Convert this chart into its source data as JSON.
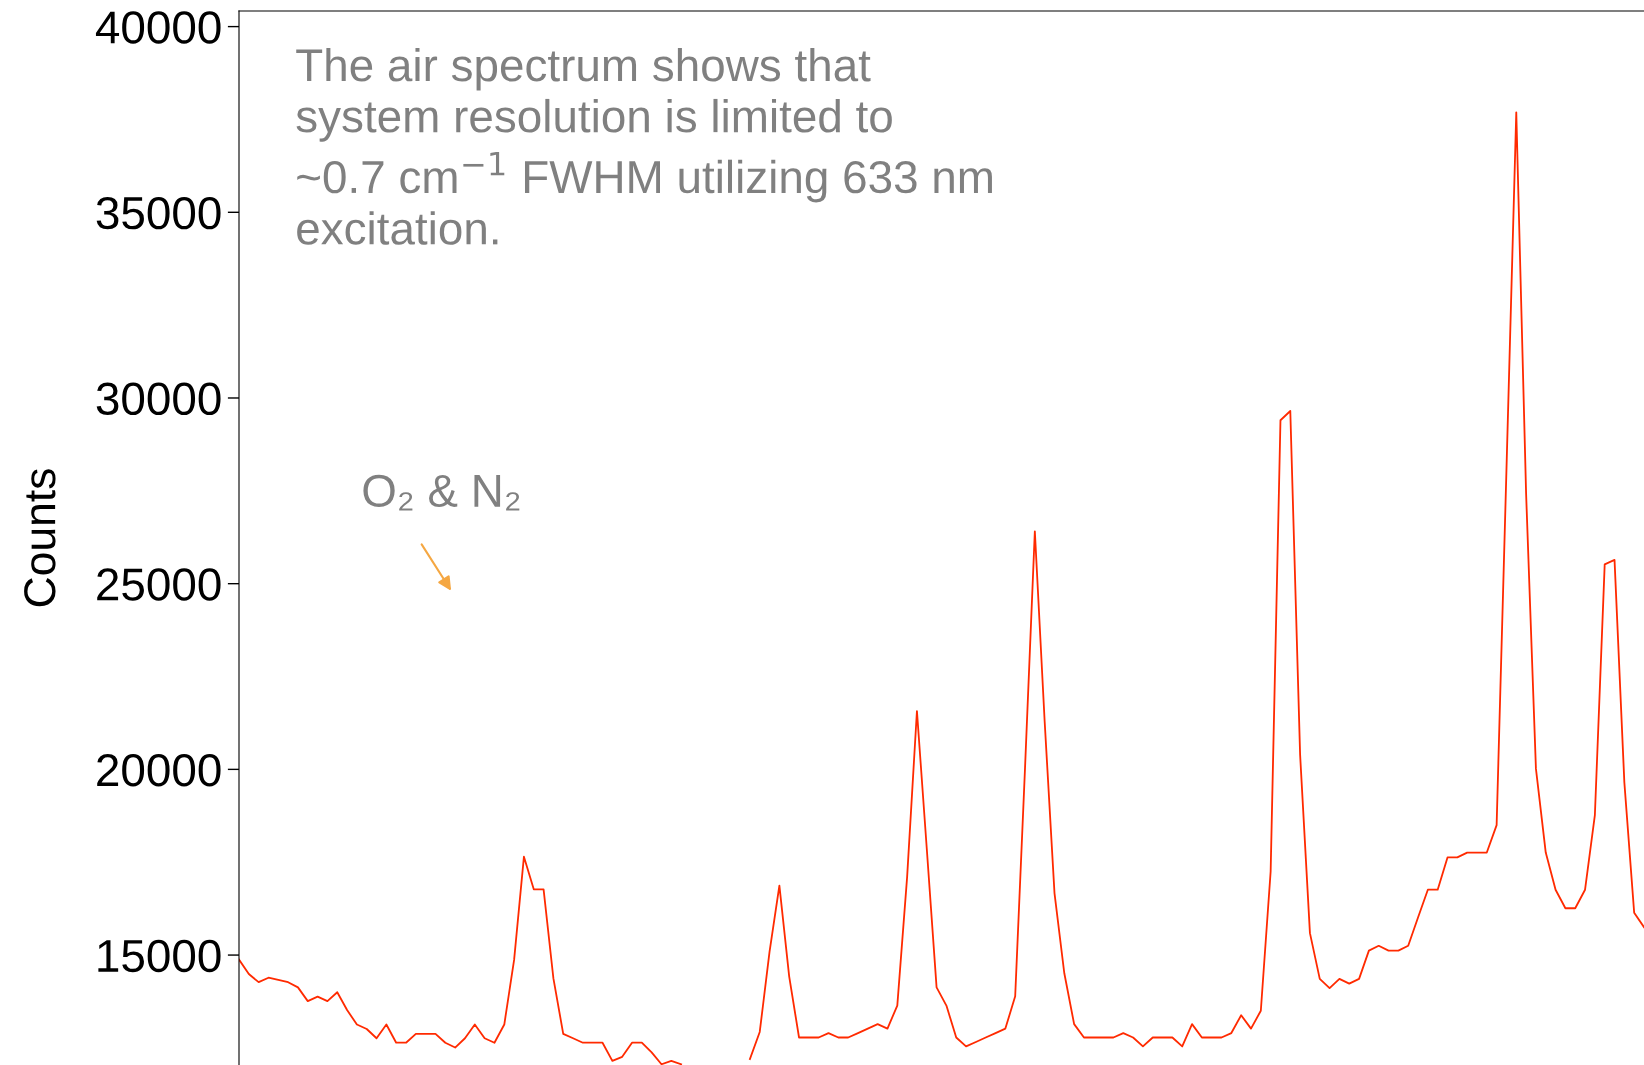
{
  "chart_data": {
    "type": "line",
    "ylabel": "Counts",
    "categories": [
      null,
      null,
      null,
      null,
      null,
      null,
      null,
      null,
      null,
      null,
      null,
      null,
      null,
      null,
      null,
      null,
      null,
      null,
      null,
      null,
      null,
      null,
      null,
      null,
      null,
      null,
      null,
      null,
      null,
      null,
      null,
      null,
      null,
      null,
      null,
      null,
      null,
      null,
      null,
      null,
      null,
      null,
      null,
      null,
      null,
      null,
      null,
      null,
      null,
      null,
      null,
      null,
      null,
      null,
      null,
      null,
      null,
      null,
      null,
      null,
      null,
      null,
      null,
      null,
      null,
      null,
      null,
      null,
      null,
      null,
      null,
      null,
      null,
      null,
      null,
      null,
      null,
      null,
      null,
      null,
      null,
      null,
      null,
      null,
      null,
      null,
      null,
      null,
      null,
      null,
      null,
      null,
      null,
      null,
      null,
      null,
      null,
      null,
      null,
      null,
      null,
      null,
      null,
      null,
      null,
      null,
      null,
      null,
      null,
      null,
      null,
      null,
      null,
      null,
      null,
      null,
      null,
      null,
      null,
      null,
      null,
      null,
      null,
      null,
      null,
      null,
      null,
      null,
      null,
      null,
      null,
      null,
      null,
      null,
      null,
      null,
      null,
      null,
      null,
      null,
      null,
      null,
      null,
      null
    ],
    "series": [
      {
        "color": "#ff2a00",
        "values": [
          14880,
          14490,
          14270,
          14390,
          14330,
          14270,
          14130,
          13760,
          13880,
          13760,
          14000,
          13520,
          13130,
          13010,
          12760,
          13130,
          12640,
          12640,
          12880,
          12880,
          12880,
          12640,
          12510,
          12760,
          13130,
          12760,
          12640,
          13130,
          14870,
          17650,
          16770,
          16770,
          14370,
          12880,
          12760,
          12640,
          12640,
          12640,
          12150,
          12260,
          12640,
          12640,
          12380,
          12060,
          12150,
          12060,
          null,
          null,
          null,
          null,
          null,
          null,
          null,
          null,
          null,
          null,
          null,
          null,
          null,
          null,
          null,
          null,
          null,
          null,
          null,
          null,
          null,
          null,
          null,
          null,
          null,
          null,
          null,
          null,
          null,
          null,
          null,
          null,
          null,
          null,
          null,
          null,
          null,
          null,
          null,
          null,
          null,
          null,
          null,
          null,
          null,
          null,
          null,
          null,
          null,
          null,
          null,
          null,
          null,
          null,
          null,
          null,
          null,
          null,
          null,
          null,
          null,
          null,
          null,
          null,
          null,
          null,
          null,
          null,
          null,
          null,
          null,
          null,
          null,
          null,
          null,
          null,
          null,
          null,
          null,
          null,
          null,
          null,
          null,
          null,
          null,
          null,
          null,
          null,
          null,
          null,
          null,
          null,
          null,
          null,
          null,
          null,
          null,
          null
        ]
      },
      {
        "color": "#ff2a00",
        "values": [
          null,
          null,
          null,
          null,
          null,
          null,
          null,
          null,
          null,
          null,
          null,
          null,
          null,
          null,
          null,
          null,
          null,
          null,
          null,
          null,
          null,
          null,
          null,
          null,
          null,
          null,
          null,
          null,
          null,
          null,
          null,
          null,
          null,
          null,
          null,
          null,
          null,
          null,
          null,
          null,
          null,
          null,
          null,
          null,
          null,
          null,
          null,
          null,
          null,
          null,
          null,
          null,
          12200,
          12930,
          15090,
          16870,
          14420,
          12780,
          12780,
          12780,
          12900,
          12780,
          12780,
          12900,
          13020,
          13140,
          13020,
          13640,
          17100,
          21570,
          17870,
          14130,
          13640,
          12780,
          12540,
          12660,
          12780,
          12900,
          13020,
          13890,
          20030,
          26410,
          21290,
          16670,
          14510,
          13140,
          12780,
          12780,
          12780,
          12780,
          12900,
          12780,
          12540,
          12780,
          12780,
          12780,
          12540,
          13140,
          12780,
          12780,
          12780,
          12900,
          13380,
          13020,
          13500,
          17250,
          29400,
          29650,
          20390,
          15590,
          14360,
          14110,
          14360,
          14230,
          14360,
          15120,
          15250,
          15120,
          15120,
          15250,
          16010,
          16760,
          16760,
          17630,
          17630,
          17760,
          17760,
          17760,
          18500,
          28060,
          37690,
          27430,
          20020,
          17760,
          16760,
          16260,
          16260,
          16760,
          18770,
          25520,
          25640,
          19650,
          16140,
          15750
        ]
      }
    ],
    "ylim": [
      12040,
      40420
    ],
    "yticks": [
      15000,
      20000,
      25000,
      30000,
      35000,
      40000
    ],
    "annotations": [
      "The air spectrum shows that\nsystem resolution is limited to\n~0.7 cm$^{−1}$ FWHM utilizing 633 nm\nexcitation.",
      "O₂ & N₂"
    ]
  }
}
